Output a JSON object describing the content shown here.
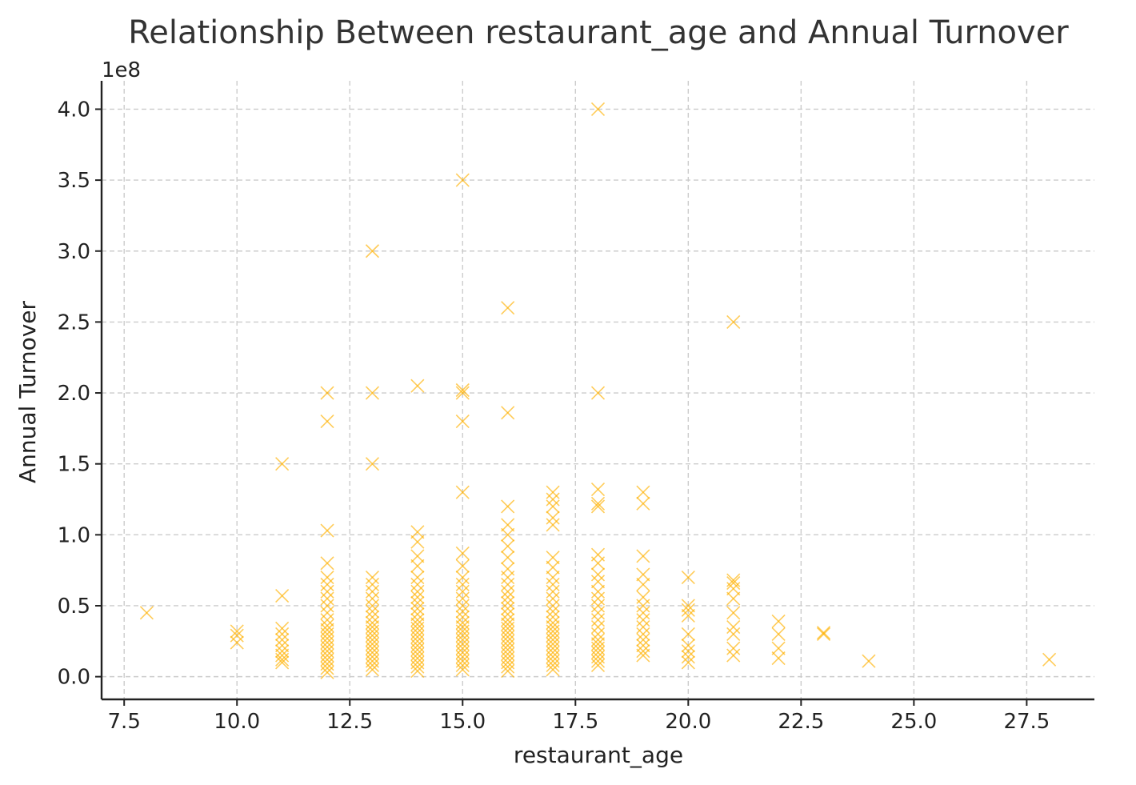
{
  "chart_data": {
    "type": "scatter",
    "title": "Relationship Between restaurant_age and Annual Turnover",
    "xlabel": "restaurant_age",
    "ylabel": "Annual Turnover",
    "y_offset_label": "1e8",
    "xlim": [
      7.0,
      29.0
    ],
    "ylim": [
      -0.16,
      4.2
    ],
    "x_ticks": [
      7.5,
      10.0,
      12.5,
      15.0,
      17.5,
      20.0,
      22.5,
      25.0,
      27.5
    ],
    "x_tick_labels": [
      "7.5",
      "10.0",
      "12.5",
      "15.0",
      "17.5",
      "20.0",
      "22.5",
      "25.0",
      "27.5"
    ],
    "y_ticks": [
      0.0,
      0.5,
      1.0,
      1.5,
      2.0,
      2.5,
      3.0,
      3.5,
      4.0
    ],
    "y_tick_labels": [
      "0.0",
      "0.5",
      "1.0",
      "1.5",
      "2.0",
      "2.5",
      "3.0",
      "3.5",
      "4.0"
    ],
    "y_unit_scale": "1e8",
    "grid": true,
    "marker": "x",
    "color": "#FFB000",
    "points": [
      {
        "x": 8,
        "y": [
          0.45
        ]
      },
      {
        "x": 10,
        "y": [
          0.24,
          0.29,
          0.32
        ]
      },
      {
        "x": 11,
        "y": [
          0.1,
          0.12,
          0.15,
          0.18,
          0.22,
          0.26,
          0.3,
          0.34,
          0.57,
          1.5
        ]
      },
      {
        "x": 12,
        "y": [
          0.03,
          0.06,
          0.09,
          0.12,
          0.15,
          0.18,
          0.21,
          0.24,
          0.27,
          0.3,
          0.33,
          0.36,
          0.4,
          0.45,
          0.5,
          0.55,
          0.6,
          0.65,
          0.7,
          0.8,
          1.03,
          1.8,
          2.0
        ]
      },
      {
        "x": 13,
        "y": [
          0.05,
          0.08,
          0.11,
          0.14,
          0.17,
          0.2,
          0.23,
          0.26,
          0.29,
          0.32,
          0.35,
          0.38,
          0.42,
          0.46,
          0.5,
          0.55,
          0.6,
          0.65,
          0.7,
          1.5,
          2.0,
          3.0
        ]
      },
      {
        "x": 14,
        "y": [
          0.04,
          0.07,
          0.1,
          0.13,
          0.16,
          0.19,
          0.22,
          0.25,
          0.28,
          0.31,
          0.34,
          0.37,
          0.4,
          0.44,
          0.48,
          0.52,
          0.56,
          0.6,
          0.65,
          0.7,
          0.78,
          0.85,
          0.95,
          1.02,
          2.05
        ]
      },
      {
        "x": 15,
        "y": [
          0.05,
          0.08,
          0.11,
          0.14,
          0.17,
          0.2,
          0.23,
          0.26,
          0.29,
          0.32,
          0.35,
          0.38,
          0.42,
          0.46,
          0.5,
          0.55,
          0.6,
          0.65,
          0.7,
          0.78,
          0.87,
          1.3,
          1.8,
          2.0,
          2.02,
          3.5
        ]
      },
      {
        "x": 16,
        "y": [
          0.04,
          0.07,
          0.1,
          0.13,
          0.16,
          0.19,
          0.22,
          0.25,
          0.28,
          0.31,
          0.34,
          0.37,
          0.4,
          0.44,
          0.48,
          0.52,
          0.56,
          0.6,
          0.65,
          0.7,
          0.76,
          0.84,
          0.92,
          1.0,
          1.07,
          1.2,
          1.86,
          2.6
        ]
      },
      {
        "x": 17,
        "y": [
          0.05,
          0.08,
          0.11,
          0.14,
          0.17,
          0.2,
          0.23,
          0.26,
          0.29,
          0.32,
          0.35,
          0.38,
          0.42,
          0.46,
          0.5,
          0.55,
          0.6,
          0.65,
          0.7,
          0.77,
          0.84,
          1.07,
          1.12,
          1.2,
          1.25,
          1.3
        ]
      },
      {
        "x": 18,
        "y": [
          0.08,
          0.11,
          0.14,
          0.17,
          0.2,
          0.23,
          0.26,
          0.3,
          0.35,
          0.4,
          0.45,
          0.5,
          0.55,
          0.6,
          0.67,
          0.72,
          0.8,
          0.86,
          1.2,
          1.22,
          1.32,
          2.0,
          4.0
        ]
      },
      {
        "x": 19,
        "y": [
          0.15,
          0.18,
          0.22,
          0.26,
          0.3,
          0.35,
          0.4,
          0.45,
          0.5,
          0.56,
          0.65,
          0.72,
          0.85,
          1.22,
          1.3
        ]
      },
      {
        "x": 20,
        "y": [
          0.1,
          0.14,
          0.18,
          0.22,
          0.3,
          0.43,
          0.47,
          0.5,
          0.7
        ]
      },
      {
        "x": 21,
        "y": [
          0.15,
          0.2,
          0.3,
          0.35,
          0.45,
          0.55,
          0.62,
          0.66,
          0.68,
          2.5
        ]
      },
      {
        "x": 22,
        "y": [
          0.13,
          0.2,
          0.3,
          0.39
        ]
      },
      {
        "x": 23,
        "y": [
          0.3,
          0.31
        ]
      },
      {
        "x": 24,
        "y": [
          0.11
        ]
      },
      {
        "x": 28,
        "y": [
          0.12
        ]
      }
    ]
  }
}
